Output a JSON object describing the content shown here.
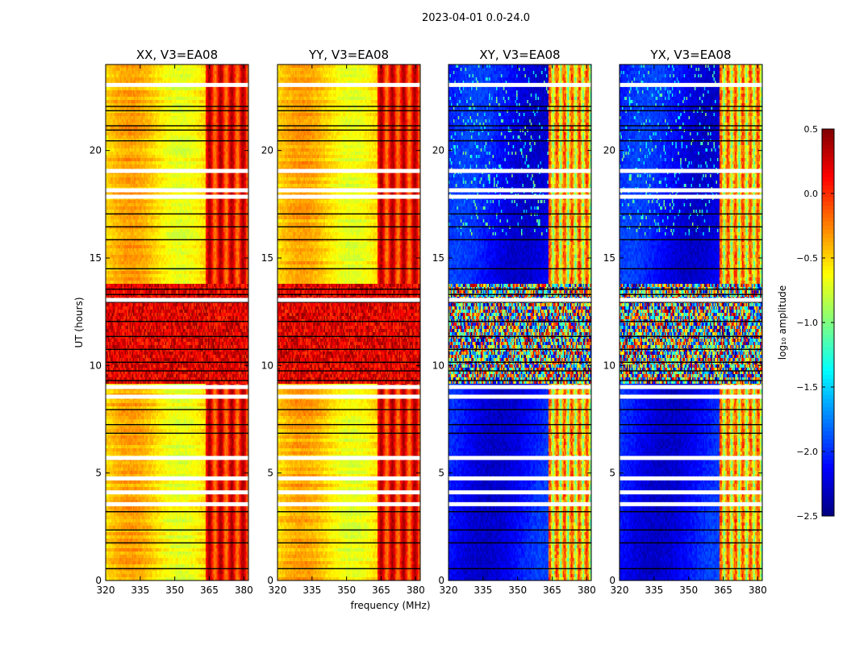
{
  "figure": {
    "suptitle": "2023-04-01 0.0-24.0",
    "xlabel": "frequency (MHz)",
    "ylabel": "UT (hours)",
    "colorbar_label": "log₁₀ amplitude"
  },
  "chart_data": {
    "type": "heatmap",
    "colormap": "jet",
    "x": {
      "label": "frequency (MHz)",
      "range": [
        320,
        382
      ],
      "ticks": [
        320,
        335,
        350,
        365,
        380
      ]
    },
    "y": {
      "label": "UT (hours)",
      "range": [
        0,
        24
      ],
      "ticks": [
        0,
        5,
        10,
        15,
        20
      ]
    },
    "color": {
      "label": "log₁₀ amplitude",
      "range": [
        -2.5,
        0.5
      ],
      "ticks": [
        0.5,
        0.0,
        -0.5,
        -1.0,
        -1.5,
        -2.0,
        -2.5
      ]
    },
    "panels": [
      {
        "title": "XX, V3=EA08",
        "level": "high"
      },
      {
        "title": "YY, V3=EA08",
        "level": "high"
      },
      {
        "title": "XY, V3=EA08",
        "level": "low"
      },
      {
        "title": "YX, V3=EA08",
        "level": "low"
      }
    ],
    "blank_rows_ut": [
      23.05,
      19.05,
      18.15,
      17.85,
      13.05,
      9.0,
      8.55,
      5.7,
      4.75,
      4.1,
      3.55
    ],
    "flagged_rows_ut": [
      22.05,
      21.85,
      21.15,
      20.95,
      20.45,
      17.05,
      16.45,
      15.85,
      14.5,
      13.55,
      13.3,
      12.95,
      12.05,
      11.35,
      10.75,
      10.15,
      9.75,
      9.3,
      7.95,
      7.25,
      6.85,
      3.2,
      2.35,
      1.75,
      0.55
    ],
    "rfi_band_mhz": [
      363.5,
      381
    ]
  }
}
